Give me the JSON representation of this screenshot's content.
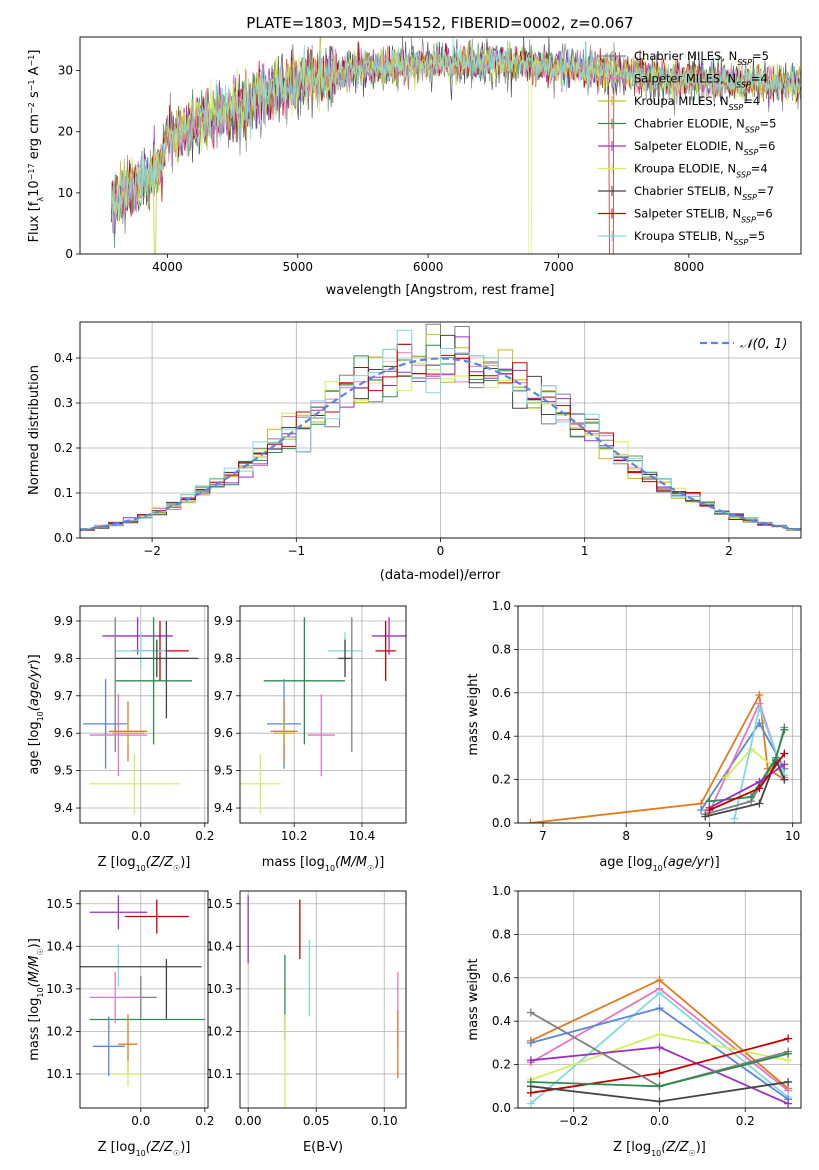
{
  "figure": {
    "title": "PLATE=1803, MJD=54152, FIBERID=0002, z=0.067"
  },
  "models": [
    {
      "name": "Chabrier MILES",
      "nssp": "5",
      "color": "#808080"
    },
    {
      "name": "Salpeter MILES",
      "nssp": "4",
      "color": "#e377c2"
    },
    {
      "name": "Kroupa MILES",
      "nssp": "4",
      "color": "#bcbd22"
    },
    {
      "name": "Chabrier ELODIE",
      "nssp": "5",
      "color": "#2f8a4f"
    },
    {
      "name": "Salpeter ELODIE",
      "nssp": "6",
      "color": "#9b30c0"
    },
    {
      "name": "Kroupa ELODIE",
      "nssp": "4",
      "color": "#d4ee5e"
    },
    {
      "name": "Chabrier STELIB",
      "nssp": "7",
      "color": "#444444"
    },
    {
      "name": "Salpeter STELIB",
      "nssp": "6",
      "color": "#c00000"
    },
    {
      "name": "Kroupa STELIB",
      "nssp": "5",
      "color": "#80d8e0"
    }
  ],
  "extra_colors": {
    "blue": "#5b86d8",
    "orange": "#e07b20"
  },
  "chart_data": [
    {
      "id": "spectrum",
      "type": "line",
      "xlabel": "wavelength [Angstrom, rest frame]",
      "ylabel": "Flux [f_λ10^-17 erg cm^-2 s^-1 A^-1]",
      "xlim": [
        3330,
        8860
      ],
      "ylim": [
        0,
        35.5
      ],
      "xticks": [
        4000,
        5000,
        6000,
        7000,
        8000
      ],
      "yticks": [
        0,
        10,
        20,
        30
      ],
      "x_start": 3570,
      "x_end": 8860,
      "continuum": [
        [
          3570,
          8
        ],
        [
          3750,
          11
        ],
        [
          3950,
          14
        ],
        [
          4000,
          19
        ],
        [
          4500,
          24
        ],
        [
          5000,
          28
        ],
        [
          5500,
          30.5
        ],
        [
          6000,
          31
        ],
        [
          6500,
          31.5
        ],
        [
          7000,
          30.5
        ],
        [
          7500,
          29.5
        ],
        [
          8000,
          28.5
        ],
        [
          8500,
          28
        ],
        [
          8860,
          28
        ]
      ],
      "legend_position": "upper right"
    },
    {
      "id": "residuals",
      "type": "line",
      "xlabel": "(data-model)/error",
      "ylabel": "Normed distribution",
      "xlim": [
        -2.5,
        2.5
      ],
      "ylim": [
        0,
        0.48
      ],
      "xticks": [
        -2,
        -1,
        0,
        1,
        2
      ],
      "yticks": [
        0.0,
        0.1,
        0.2,
        0.3,
        0.4
      ],
      "grid": true,
      "legend_label": "𝒩(0, 1)",
      "legend_position": "upper right",
      "bin_width": 0.1
    },
    {
      "id": "age-vs-Z",
      "type": "scatter",
      "xlabel": "Z [log10(Z/Z☉)]",
      "ylabel": "age [log10(age/yr)]",
      "xlim": [
        -0.19,
        0.21
      ],
      "ylim": [
        9.36,
        9.94
      ],
      "xticks": [
        0.0,
        0.2
      ],
      "yticks": [
        9.4,
        9.5,
        9.6,
        9.7,
        9.8,
        9.9
      ],
      "grid": true,
      "points": [
        {
          "c": "#9b30c0",
          "x": -0.01,
          "xe": 0.11,
          "y": 9.86,
          "ye": 0.05
        },
        {
          "c": "#c00000",
          "x": 0.06,
          "xe": 0.09,
          "y": 9.82,
          "ye": 0.08
        },
        {
          "c": "#80d8e0",
          "x": 0.0,
          "xe": 0.08,
          "y": 9.82,
          "ye": 0.05
        },
        {
          "c": "#444444",
          "x": 0.05,
          "xe": 0.13,
          "y": 9.8,
          "ye": 0.05
        },
        {
          "c": "#444444",
          "x": 0.08,
          "xe": 0.0,
          "y": 9.77,
          "ye": 0.13
        },
        {
          "c": "#2f8a4f",
          "x": 0.04,
          "xe": 0.12,
          "y": 9.74,
          "ye": 0.17
        },
        {
          "c": "#808080",
          "x": -0.08,
          "xe": 0.0,
          "y": 9.73,
          "ye": 0.18
        },
        {
          "c": "#5b86d8",
          "x": -0.11,
          "xe": 0.07,
          "y": 9.625,
          "ye": 0.12
        },
        {
          "c": "#e07b20",
          "x": -0.04,
          "xe": 0.06,
          "y": 9.605,
          "ye": 0.08
        },
        {
          "c": "#bcbd22",
          "x": -0.04,
          "xe": 0.05,
          "y": 9.6,
          "ye": 0.03
        },
        {
          "c": "#e377c2",
          "x": -0.07,
          "xe": 0.09,
          "y": 9.595,
          "ye": 0.11
        },
        {
          "c": "#d4ee5e",
          "x": -0.02,
          "xe": 0.14,
          "y": 9.465,
          "ye": 0.08
        }
      ]
    },
    {
      "id": "age-vs-mass",
      "type": "scatter",
      "xlabel": "mass [log10(M/M☉)]",
      "ylabel": "",
      "xlim": [
        10.04,
        10.53
      ],
      "ylim": [
        9.36,
        9.94
      ],
      "xticks": [
        10.2,
        10.4
      ],
      "yticks": [
        9.4,
        9.5,
        9.6,
        9.7,
        9.8,
        9.9
      ],
      "grid": true,
      "points": [
        {
          "c": "#9b30c0",
          "x": 10.48,
          "xe": 0.05,
          "y": 9.86,
          "ye": 0.05
        },
        {
          "c": "#c00000",
          "x": 10.47,
          "xe": 0.03,
          "y": 9.82,
          "ye": 0.08
        },
        {
          "c": "#80d8e0",
          "x": 10.35,
          "xe": 0.05,
          "y": 9.82,
          "ye": 0.05
        },
        {
          "c": "#444444",
          "x": 10.35,
          "xe": 0.02,
          "y": 9.8,
          "ye": 0.05
        },
        {
          "c": "#2f8a4f",
          "x": 10.23,
          "xe": 0.12,
          "y": 9.74,
          "ye": 0.17
        },
        {
          "c": "#808080",
          "x": 10.37,
          "xe": 0.0,
          "y": 9.73,
          "ye": 0.18
        },
        {
          "c": "#5b86d8",
          "x": 10.17,
          "xe": 0.05,
          "y": 9.625,
          "ye": 0.12
        },
        {
          "c": "#e07b20",
          "x": 10.17,
          "xe": 0.04,
          "y": 9.605,
          "ye": 0.08
        },
        {
          "c": "#bcbd22",
          "x": 10.17,
          "xe": 0.03,
          "y": 9.6,
          "ye": 0.03
        },
        {
          "c": "#e377c2",
          "x": 10.28,
          "xe": 0.04,
          "y": 9.595,
          "ye": 0.11
        },
        {
          "c": "#d4ee5e",
          "x": 10.1,
          "xe": 0.06,
          "y": 9.465,
          "ye": 0.08
        }
      ]
    },
    {
      "id": "weight-vs-age",
      "type": "line",
      "xlabel": "age [log10(age/yr)]",
      "ylabel": "mass weight",
      "xlim": [
        6.7,
        10.1
      ],
      "ylim": [
        0,
        1.0
      ],
      "xticks": [
        7,
        8,
        9,
        10
      ],
      "yticks": [
        0.0,
        0.2,
        0.4,
        0.6,
        0.8,
        1.0
      ],
      "grid": true,
      "series": [
        {
          "c": "#e07b20",
          "x": [
            6.85,
            8.9,
            9.6,
            9.7,
            9.9
          ],
          "y": [
            0.0,
            0.09,
            0.59,
            0.25,
            0.2
          ]
        },
        {
          "c": "#5b86d8",
          "x": [
            8.9,
            9.6,
            9.9
          ],
          "y": [
            0.06,
            0.46,
            0.25
          ]
        },
        {
          "c": "#e377c2",
          "x": [
            9.0,
            9.6,
            9.9
          ],
          "y": [
            0.05,
            0.55,
            0.21
          ]
        },
        {
          "c": "#d4ee5e",
          "x": [
            9.2,
            9.5,
            9.9
          ],
          "y": [
            0.21,
            0.34,
            0.22
          ]
        },
        {
          "c": "#80d8e0",
          "x": [
            9.3,
            9.6,
            9.9
          ],
          "y": [
            0.02,
            0.53,
            0.22
          ]
        },
        {
          "c": "#808080",
          "x": [
            8.95,
            9.5,
            9.8,
            9.9
          ],
          "y": [
            0.04,
            0.1,
            0.3,
            0.44
          ]
        },
        {
          "c": "#444444",
          "x": [
            8.95,
            9.6,
            9.8,
            9.9
          ],
          "y": [
            0.03,
            0.09,
            0.29,
            0.2
          ]
        },
        {
          "c": "#2f8a4f",
          "x": [
            9.0,
            9.5,
            9.8,
            9.9
          ],
          "y": [
            0.1,
            0.12,
            0.3,
            0.43
          ]
        },
        {
          "c": "#9b30c0",
          "x": [
            9.0,
            9.6,
            9.9
          ],
          "y": [
            0.07,
            0.19,
            0.27
          ]
        },
        {
          "c": "#c00000",
          "x": [
            9.0,
            9.6,
            9.9
          ],
          "y": [
            0.06,
            0.16,
            0.32
          ]
        }
      ]
    },
    {
      "id": "mass-vs-Z",
      "type": "scatter",
      "xlabel": "Z [log10(Z/Z☉)]",
      "ylabel": "mass [log10(M/M☉)]",
      "xlim": [
        -0.19,
        0.21
      ],
      "ylim": [
        10.02,
        10.53
      ],
      "xticks": [
        0.0,
        0.2
      ],
      "yticks": [
        10.1,
        10.2,
        10.3,
        10.4,
        10.5
      ],
      "grid": true,
      "points": [
        {
          "c": "#9b30c0",
          "x": -0.07,
          "xe": 0.09,
          "y": 10.48,
          "ye": 0.04
        },
        {
          "c": "#c00000",
          "x": 0.05,
          "xe": 0.1,
          "y": 10.47,
          "ye": 0.04
        },
        {
          "c": "#80d8e0",
          "x": -0.07,
          "xe": 0.0,
          "y": 10.355,
          "ye": 0.05
        },
        {
          "c": "#444444",
          "x": 0.0,
          "xe": 0.19,
          "y": 10.352,
          "ye": 0.0
        },
        {
          "c": "#444444",
          "x": 0.08,
          "xe": 0.0,
          "y": 10.3,
          "ye": 0.07
        },
        {
          "c": "#2f8a4f",
          "x": 0.02,
          "xe": 0.18,
          "y": 10.228,
          "ye": 0.0
        },
        {
          "c": "#808080",
          "x": 0.0,
          "xe": 0.05,
          "y": 10.28,
          "ye": 0.05
        },
        {
          "c": "#e377c2",
          "x": -0.08,
          "xe": 0.08,
          "y": 10.28,
          "ye": 0.06
        },
        {
          "c": "#5b86d8",
          "x": -0.1,
          "xe": 0.05,
          "y": 10.165,
          "ye": 0.07
        },
        {
          "c": "#e07b20",
          "x": -0.04,
          "xe": 0.03,
          "y": 10.17,
          "ye": 0.07
        },
        {
          "c": "#d4ee5e",
          "x": -0.04,
          "xe": 0.05,
          "y": 10.1,
          "ye": 0.03
        }
      ]
    },
    {
      "id": "mass-vs-ebv",
      "type": "scatter",
      "xlabel": "E(B-V)",
      "ylabel": "",
      "xlim": [
        -0.006,
        0.116
      ],
      "ylim": [
        10.02,
        10.53
      ],
      "xticks": [
        0.0,
        0.05,
        0.1
      ],
      "yticks": [
        10.1,
        10.2,
        10.3,
        10.4,
        10.5
      ],
      "grid": true,
      "points": [
        {
          "c": "#9b30c0",
          "x": 0.0,
          "xe": 0,
          "y": 10.44,
          "ye": 0.08
        },
        {
          "c": "#c00000",
          "x": 0.038,
          "xe": 0,
          "y": 10.44,
          "ye": 0.07
        },
        {
          "c": "#80d8e0",
          "x": 0.045,
          "xe": 0,
          "y": 10.325,
          "ye": 0.09
        },
        {
          "c": "#2f8a4f",
          "x": 0.027,
          "xe": 0,
          "y": 10.28,
          "ye": 0.1
        },
        {
          "c": "#e377c2",
          "x": 0.11,
          "xe": 0,
          "y": 10.25,
          "ye": 0.09
        },
        {
          "c": "#d4ee5e",
          "x": 0.027,
          "xe": 0,
          "y": 10.13,
          "ye": 0.11
        },
        {
          "c": "#e07b20",
          "x": 0.11,
          "xe": 0,
          "y": 10.17,
          "ye": 0.08
        }
      ]
    },
    {
      "id": "weight-vs-Z",
      "type": "line",
      "xlabel": "Z [log10(Z/Z☉)]",
      "ylabel": "mass weight",
      "xlim": [
        -0.33,
        0.33
      ],
      "ylim": [
        0,
        1.0
      ],
      "xticks": [
        -0.2,
        0.0,
        0.2
      ],
      "yticks": [
        0.0,
        0.2,
        0.4,
        0.6,
        0.8,
        1.0
      ],
      "grid": true,
      "series": [
        {
          "c": "#e07b20",
          "x": [
            -0.3,
            0.0,
            0.3
          ],
          "y": [
            0.31,
            0.59,
            0.09
          ]
        },
        {
          "c": "#e377c2",
          "x": [
            -0.3,
            0.0,
            0.3
          ],
          "y": [
            0.21,
            0.55,
            0.08
          ]
        },
        {
          "c": "#80d8e0",
          "x": [
            -0.3,
            0.0,
            0.3
          ],
          "y": [
            0.02,
            0.53,
            0.05
          ]
        },
        {
          "c": "#5b86d8",
          "x": [
            -0.3,
            0.0,
            0.3
          ],
          "y": [
            0.3,
            0.46,
            0.04
          ]
        },
        {
          "c": "#d4ee5e",
          "x": [
            -0.3,
            0.0,
            0.3
          ],
          "y": [
            0.13,
            0.34,
            0.22
          ]
        },
        {
          "c": "#9b30c0",
          "x": [
            -0.3,
            0.0,
            0.3
          ],
          "y": [
            0.22,
            0.28,
            0.02
          ]
        },
        {
          "c": "#c00000",
          "x": [
            -0.3,
            0.0,
            0.3
          ],
          "y": [
            0.07,
            0.16,
            0.32
          ]
        },
        {
          "c": "#444444",
          "x": [
            -0.3,
            0.0,
            0.3
          ],
          "y": [
            0.1,
            0.03,
            0.12
          ]
        },
        {
          "c": "#808080",
          "x": [
            -0.3,
            0.0,
            0.3
          ],
          "y": [
            0.44,
            0.1,
            0.26
          ]
        },
        {
          "c": "#2f8a4f",
          "x": [
            -0.3,
            0.0,
            0.3
          ],
          "y": [
            0.12,
            0.1,
            0.25
          ]
        }
      ]
    }
  ]
}
